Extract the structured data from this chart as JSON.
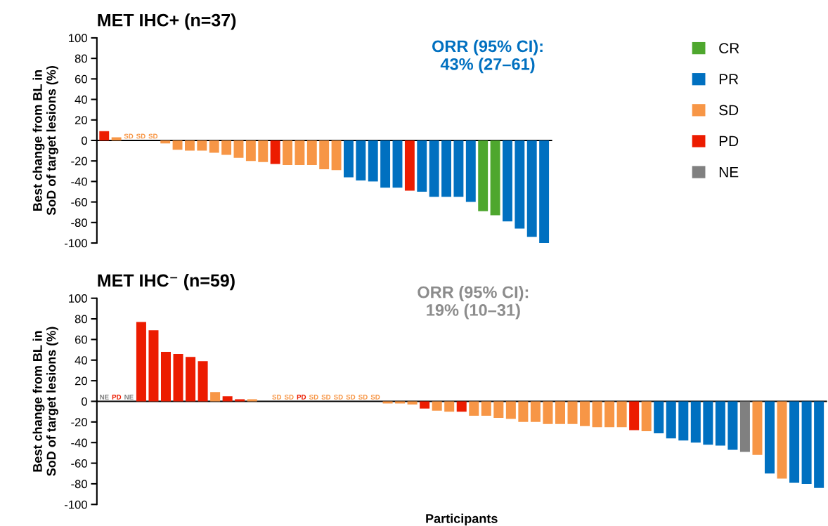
{
  "chart_data": [
    {
      "type": "bar",
      "title": "MET IHC+ (n=37)",
      "ylabel": "Best change from BL in\nSoD of target lesions (%)",
      "legend": "right",
      "ylim": [
        -100,
        100
      ],
      "yticks": [
        -100,
        -80,
        -60,
        -40,
        -20,
        0,
        20,
        40,
        60,
        80,
        100
      ],
      "annotations": [
        "ORR (95% CI):\n43% (27–61)"
      ],
      "categories": [
        null,
        null,
        null,
        null,
        null,
        null,
        null,
        null,
        null,
        null,
        null,
        null,
        null,
        null,
        null,
        null,
        null,
        null,
        null,
        null,
        null,
        null,
        null,
        null,
        null,
        null,
        null,
        null,
        null,
        null,
        null,
        null,
        null,
        null,
        null,
        null,
        null
      ],
      "series": [
        {
          "name": "CR",
          "color": "#4ea72e",
          "values": [
            null,
            null,
            null,
            null,
            null,
            null,
            null,
            null,
            null,
            null,
            null,
            null,
            null,
            null,
            null,
            null,
            null,
            null,
            null,
            null,
            null,
            null,
            null,
            null,
            null,
            null,
            null,
            null,
            null,
            null,
            null,
            -69,
            -73,
            null,
            null,
            null,
            null
          ]
        },
        {
          "name": "PR",
          "color": "#0070c0",
          "values": [
            null,
            null,
            null,
            null,
            null,
            null,
            null,
            null,
            null,
            null,
            null,
            null,
            null,
            null,
            null,
            null,
            null,
            null,
            null,
            null,
            -36,
            -39,
            -40,
            -46,
            -46,
            null,
            -50,
            -55,
            -55,
            -55,
            -60,
            null,
            null,
            -79,
            -86,
            -94,
            -100
          ]
        },
        {
          "name": "SD",
          "color": "#f79646",
          "values": [
            null,
            3,
            0,
            0,
            0,
            -3,
            -9,
            -10,
            -10,
            -12,
            -14,
            -17,
            -20,
            -21,
            null,
            -24,
            -24,
            -24,
            -28,
            -29,
            null,
            null,
            null,
            null,
            null,
            null,
            null,
            null,
            null,
            null,
            null,
            null,
            null,
            null,
            null,
            null,
            null
          ],
          "value_labels": [
            null,
            null,
            "SD",
            "SD",
            "SD",
            null,
            null,
            null,
            null,
            null,
            null,
            null,
            null,
            null,
            null,
            null,
            null,
            null,
            null,
            null,
            null,
            null,
            null,
            null,
            null,
            null,
            null,
            null,
            null,
            null,
            null,
            null,
            null,
            null,
            null,
            null,
            null
          ]
        },
        {
          "name": "PD",
          "color": "#ec1c00",
          "values": [
            9,
            null,
            null,
            null,
            null,
            null,
            null,
            null,
            null,
            null,
            null,
            null,
            null,
            null,
            -23,
            null,
            null,
            null,
            null,
            null,
            null,
            null,
            null,
            null,
            null,
            -49,
            null,
            null,
            null,
            null,
            null,
            null,
            null,
            null,
            null,
            null,
            null
          ]
        },
        {
          "name": "NE",
          "color": "#808080",
          "values": [
            null,
            null,
            null,
            null,
            null,
            null,
            null,
            null,
            null,
            null,
            null,
            null,
            null,
            null,
            null,
            null,
            null,
            null,
            null,
            null,
            null,
            null,
            null,
            null,
            null,
            null,
            null,
            null,
            null,
            null,
            null,
            null,
            null,
            null,
            null,
            null,
            null
          ]
        }
      ]
    },
    {
      "type": "bar",
      "title": "MET IHC⁻ (n=59)",
      "ylabel": "Best change from BL in\nSoD of target lesions (%)",
      "xlabel": "Participants",
      "ylim": [
        -100,
        100
      ],
      "yticks": [
        -100,
        -80,
        -60,
        -40,
        -20,
        0,
        20,
        40,
        60,
        80,
        100
      ],
      "annotations": [
        "ORR (95% CI):\n19% (10–31)"
      ],
      "categories": [
        null,
        null,
        null,
        null,
        null,
        null,
        null,
        null,
        null,
        null,
        null,
        null,
        null,
        null,
        null,
        null,
        null,
        null,
        null,
        null,
        null,
        null,
        null,
        null,
        null,
        null,
        null,
        null,
        null,
        null,
        null,
        null,
        null,
        null,
        null,
        null,
        null,
        null,
        null,
        null,
        null,
        null,
        null,
        null,
        null,
        null,
        null,
        null,
        null,
        null,
        null,
        null,
        null,
        null,
        null,
        null,
        null,
        null,
        null
      ],
      "series": [
        {
          "color": "#0070c0",
          "values": [
            null,
            null,
            null,
            null,
            null,
            null,
            null,
            null,
            null,
            null,
            null,
            null,
            null,
            null,
            null,
            null,
            null,
            null,
            null,
            null,
            null,
            null,
            null,
            null,
            null,
            null,
            null,
            null,
            null,
            null,
            null,
            null,
            null,
            null,
            null,
            null,
            null,
            null,
            null,
            null,
            null,
            null,
            null,
            null,
            null,
            -31,
            -36,
            -38,
            -40,
            -42,
            -43,
            -47,
            null,
            null,
            -70,
            null,
            -79,
            -80,
            -84
          ]
        },
        {
          "color": "#f79646",
          "values": [
            null,
            null,
            null,
            null,
            null,
            null,
            null,
            null,
            null,
            9,
            null,
            null,
            2,
            null,
            0,
            0,
            null,
            0,
            0,
            0,
            0,
            0,
            0,
            -2,
            -2,
            -3,
            null,
            -9,
            -10,
            null,
            -14,
            -14,
            -16,
            -17,
            -20,
            -20,
            -22,
            -22,
            -22,
            -24,
            -25,
            -25,
            -25,
            null,
            -29,
            null,
            null,
            null,
            null,
            null,
            null,
            null,
            null,
            -52,
            null,
            -75,
            null,
            null,
            null
          ],
          "value_labels": [
            null,
            null,
            null,
            null,
            null,
            null,
            null,
            null,
            null,
            null,
            null,
            null,
            null,
            null,
            "SD",
            "SD",
            null,
            "SD",
            "SD",
            "SD",
            "SD",
            "SD",
            "SD",
            null,
            null,
            null,
            null,
            null,
            null,
            null,
            null,
            null,
            null,
            null,
            null,
            null,
            null,
            null,
            null,
            null,
            null,
            null,
            null,
            null,
            null,
            null,
            null,
            null,
            null,
            null,
            null,
            null,
            null,
            null,
            null,
            null,
            null,
            null,
            null
          ]
        },
        {
          "color": "#ec1c00",
          "values": [
            null,
            0,
            null,
            77,
            69,
            48,
            46,
            43,
            39,
            null,
            5,
            2,
            null,
            null,
            null,
            null,
            0,
            null,
            null,
            null,
            null,
            null,
            null,
            null,
            null,
            null,
            -7,
            null,
            null,
            -10,
            null,
            null,
            null,
            null,
            null,
            null,
            null,
            null,
            null,
            null,
            null,
            null,
            null,
            -28,
            null,
            null,
            null,
            null,
            null,
            null,
            null,
            null,
            null,
            null,
            null,
            null,
            null,
            null,
            null
          ],
          "value_labels": [
            null,
            "PD",
            null,
            null,
            null,
            null,
            null,
            null,
            null,
            null,
            null,
            null,
            null,
            null,
            null,
            null,
            "PD",
            null,
            null,
            null,
            null,
            null,
            null,
            null,
            null,
            null,
            null,
            null,
            null,
            null,
            null,
            null,
            null,
            null,
            null,
            null,
            null,
            null,
            null,
            null,
            null,
            null,
            null,
            null,
            null,
            null,
            null,
            null,
            null,
            null,
            null,
            null,
            null,
            null,
            null,
            null,
            null,
            null,
            null
          ]
        },
        {
          "color": "#808080",
          "values": [
            0,
            null,
            0,
            null,
            null,
            null,
            null,
            null,
            null,
            null,
            null,
            null,
            null,
            null,
            null,
            null,
            null,
            null,
            null,
            null,
            null,
            null,
            null,
            null,
            null,
            null,
            null,
            null,
            null,
            null,
            null,
            null,
            null,
            null,
            null,
            null,
            null,
            null,
            null,
            null,
            null,
            null,
            null,
            null,
            null,
            null,
            null,
            null,
            null,
            null,
            null,
            null,
            -49,
            null,
            null,
            null,
            null,
            null,
            null
          ],
          "value_labels": [
            "NE",
            null,
            "NE",
            null,
            null,
            null,
            null,
            null,
            null,
            null,
            null,
            null,
            null,
            null,
            null,
            null,
            null,
            null,
            null,
            null,
            null,
            null,
            null,
            null,
            null,
            null,
            null,
            null,
            null,
            null,
            null,
            null,
            null,
            null,
            null,
            null,
            null,
            null,
            null,
            null,
            null,
            null,
            null,
            null,
            null,
            null,
            null,
            null,
            null,
            null,
            null,
            null,
            null,
            null,
            null,
            null,
            null,
            null,
            null
          ]
        }
      ]
    }
  ]
}
